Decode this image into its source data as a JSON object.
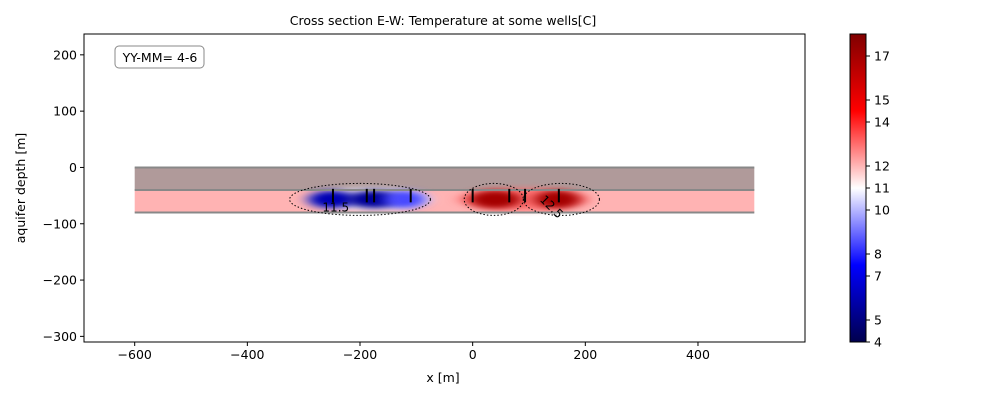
{
  "chart_data": {
    "type": "heatmap",
    "title": "Cross section E-W: Temperature at some wells[C]",
    "xlabel": "x [m]",
    "ylabel": "aquifer depth [m]",
    "xlim": [
      -690,
      590
    ],
    "ylim": [
      -310,
      237
    ],
    "xticks": [
      -600,
      -400,
      -200,
      0,
      200,
      400
    ],
    "yticks": [
      200,
      100,
      0,
      -100,
      -200,
      -300
    ],
    "annotation_box": "YY-MM= 4-6",
    "colorbar": {
      "colormap": "seismic",
      "range": [
        4,
        18
      ],
      "ticks": [
        4,
        5,
        7,
        8,
        10,
        11,
        12,
        14,
        15,
        17
      ]
    },
    "layers": [
      {
        "x_range": [
          -600,
          500
        ],
        "y_range": [
          -40,
          0
        ],
        "color": "#b09a9a"
      },
      {
        "x_range": [
          -600,
          500
        ],
        "y_range": [
          -80,
          -40
        ],
        "color": "#ffb3b3"
      }
    ],
    "plumes": [
      {
        "x": -250,
        "y": -55,
        "value": 6,
        "width": 50
      },
      {
        "x": -175,
        "y": -55,
        "value": 5.5,
        "width": 60
      },
      {
        "x": -120,
        "y": -55,
        "value": 8.5,
        "width": 40
      },
      {
        "x": 40,
        "y": -55,
        "value": 17,
        "width": 55
      },
      {
        "x": 150,
        "y": -55,
        "value": 17,
        "width": 45
      }
    ],
    "wells": [
      -248,
      -188,
      -175,
      -110,
      0,
      65,
      93,
      153
    ],
    "contours": [
      {
        "label": "11.5",
        "x_range": [
          -325,
          -75
        ]
      },
      {
        "label": "12.5",
        "x_range": [
          -15,
          225
        ]
      }
    ]
  }
}
